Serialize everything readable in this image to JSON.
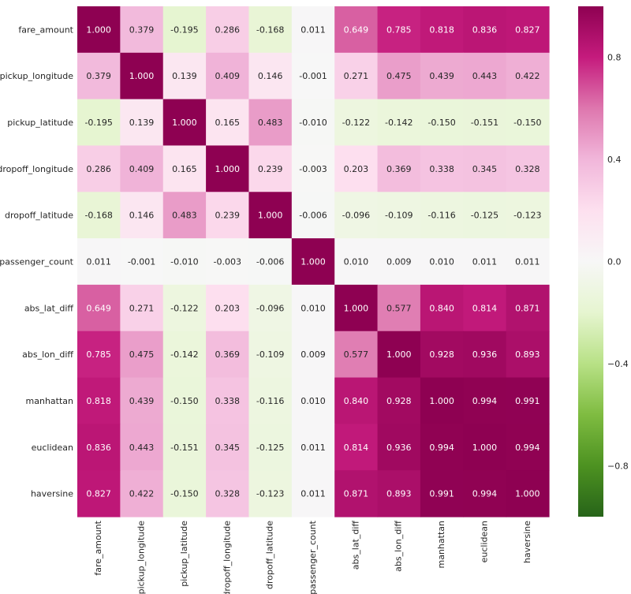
{
  "chart_data": {
    "type": "heatmap",
    "title": "",
    "variables": [
      "fare_amount",
      "pickup_longitude",
      "pickup_latitude",
      "dropoff_longitude",
      "dropoff_latitude",
      "passenger_count",
      "abs_lat_diff",
      "abs_lon_diff",
      "manhattan",
      "euclidean",
      "haversine"
    ],
    "matrix": [
      [
        1.0,
        0.379,
        -0.195,
        0.286,
        -0.168,
        0.011,
        0.649,
        0.785,
        0.818,
        0.836,
        0.827
      ],
      [
        0.379,
        1.0,
        0.139,
        0.409,
        0.146,
        -0.001,
        0.271,
        0.475,
        0.439,
        0.443,
        0.422
      ],
      [
        -0.195,
        0.139,
        1.0,
        0.165,
        0.483,
        -0.01,
        -0.122,
        -0.142,
        -0.15,
        -0.151,
        -0.15
      ],
      [
        0.286,
        0.409,
        0.165,
        1.0,
        0.239,
        -0.003,
        0.203,
        0.369,
        0.338,
        0.345,
        0.328
      ],
      [
        -0.168,
        0.146,
        0.483,
        0.239,
        1.0,
        -0.006,
        -0.096,
        -0.109,
        -0.116,
        -0.125,
        -0.123
      ],
      [
        0.011,
        -0.001,
        -0.01,
        -0.003,
        -0.006,
        1.0,
        0.01,
        0.009,
        0.01,
        0.011,
        0.011
      ],
      [
        0.649,
        0.271,
        -0.122,
        0.203,
        -0.096,
        0.01,
        1.0,
        0.577,
        0.84,
        0.814,
        0.871
      ],
      [
        0.785,
        0.475,
        -0.142,
        0.369,
        -0.109,
        0.009,
        0.577,
        1.0,
        0.928,
        0.936,
        0.893
      ],
      [
        0.818,
        0.439,
        -0.15,
        0.338,
        -0.116,
        0.01,
        0.84,
        0.928,
        1.0,
        0.994,
        0.991
      ],
      [
        0.836,
        0.443,
        -0.151,
        0.345,
        -0.125,
        0.011,
        0.814,
        0.936,
        0.994,
        1.0,
        0.994
      ],
      [
        0.827,
        0.422,
        -0.15,
        0.328,
        -0.123,
        0.011,
        0.871,
        0.893,
        0.991,
        0.994,
        1.0
      ]
    ],
    "value_format": "3 decimals",
    "colormap": "PiYG_r",
    "colormap_stops": [
      "#276419",
      "#4d9221",
      "#7fbc41",
      "#b8e186",
      "#e6f5d0",
      "#f7f7f7",
      "#fde0ef",
      "#f1b6da",
      "#de77ae",
      "#c51b7d",
      "#8e0152"
    ],
    "vmin": -1,
    "vmax": 1,
    "colorbar_ticks": [
      0.8,
      0.4,
      0.0,
      -0.4,
      -0.8
    ],
    "colorbar_tick_labels": [
      "0.8",
      "0.4",
      "0.0",
      "−0.4",
      "−0.8"
    ],
    "grid": false
  }
}
